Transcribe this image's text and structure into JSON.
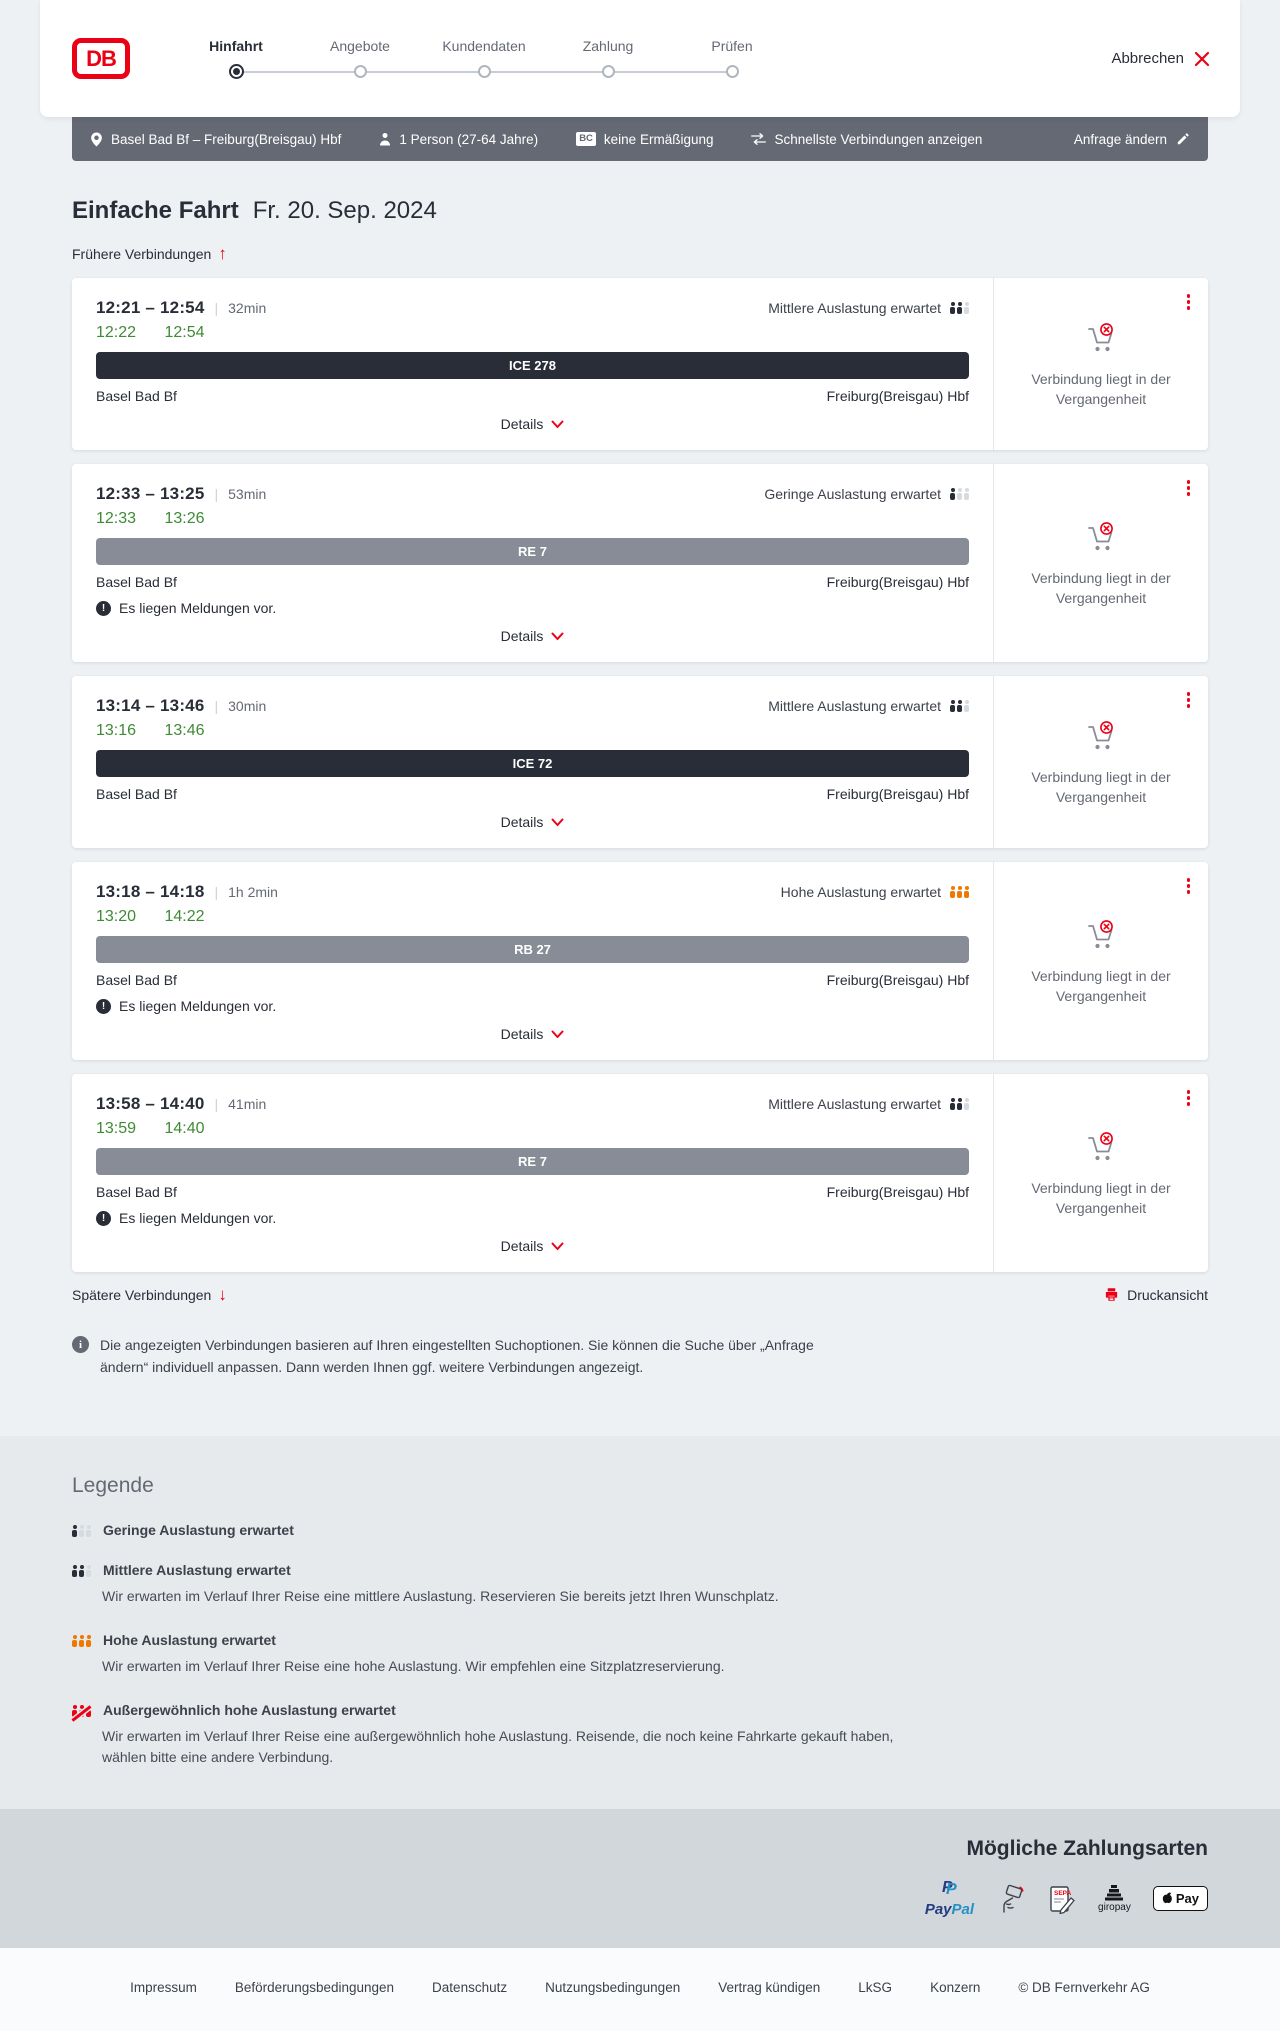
{
  "colors": {
    "brand_red": "#ec0016",
    "green_ontime": "#3f8a35",
    "orange_high": "#f07800",
    "bar_dark": "#282d37",
    "bar_gray": "#878c96",
    "querybar_bg": "#646973"
  },
  "header": {
    "logo_text": "DB",
    "cancel_label": "Abbrechen",
    "steps": [
      {
        "label": "Hinfahrt",
        "state": "active"
      },
      {
        "label": "Angebote",
        "state": "upcoming"
      },
      {
        "label": "Kundendaten",
        "state": "upcoming"
      },
      {
        "label": "Zahlung",
        "state": "upcoming"
      },
      {
        "label": "Prüfen",
        "state": "upcoming"
      }
    ]
  },
  "querybar": {
    "route": "Basel Bad Bf – Freiburg(Breisgau) Hbf",
    "passengers": "1 Person (27-64 Jahre)",
    "discount_badge": "BC",
    "discount": "keine Ermäßigung",
    "sort_mode": "Schnellste Verbindungen anzeigen",
    "edit_label": "Anfrage ändern"
  },
  "results": {
    "title": "Einfache Fahrt",
    "date": "Fr. 20. Sep. 2024",
    "earlier_label": "Frühere Verbindungen",
    "later_label": "Spätere Verbindungen",
    "print_label": "Druckansicht",
    "details_label": "Details",
    "past_note": "Verbindung liegt in der Vergangenheit",
    "message_note": "Es liegen Meldungen vor.",
    "info_text": "Die angezeigten Verbindungen basieren auf Ihren eingestellten Suchoptionen. Sie können die Suche über „Anfrage ändern“ individuell anpassen. Dann werden Ihnen ggf. weitere Verbindungen angezeigt.",
    "connections": [
      {
        "dep": "12:21",
        "arr": "12:54",
        "dash": "–",
        "duration": "32min",
        "real_dep": "12:22",
        "real_arr": "12:54",
        "train": "ICE 278",
        "train_type": "ice",
        "occupancy": "Mittlere Auslastung erwartet",
        "occupancy_level": "mittel",
        "from": "Basel Bad Bf",
        "to": "Freiburg(Breisgau) Hbf",
        "has_messages": false
      },
      {
        "dep": "12:33",
        "arr": "13:25",
        "dash": "–",
        "duration": "53min",
        "real_dep": "12:33",
        "real_arr": "13:26",
        "train": "RE 7",
        "train_type": "regional",
        "occupancy": "Geringe Auslastung erwartet",
        "occupancy_level": "gering",
        "from": "Basel Bad Bf",
        "to": "Freiburg(Breisgau) Hbf",
        "has_messages": true
      },
      {
        "dep": "13:14",
        "arr": "13:46",
        "dash": "–",
        "duration": "30min",
        "real_dep": "13:16",
        "real_arr": "13:46",
        "train": "ICE 72",
        "train_type": "ice",
        "occupancy": "Mittlere Auslastung erwartet",
        "occupancy_level": "mittel",
        "from": "Basel Bad Bf",
        "to": "Freiburg(Breisgau) Hbf",
        "has_messages": false
      },
      {
        "dep": "13:18",
        "arr": "14:18",
        "dash": "–",
        "duration": "1h 2min",
        "real_dep": "13:20",
        "real_arr": "14:22",
        "train": "RB 27",
        "train_type": "regional",
        "occupancy": "Hohe Auslastung erwartet",
        "occupancy_level": "hoch",
        "from": "Basel Bad Bf",
        "to": "Freiburg(Breisgau) Hbf",
        "has_messages": true
      },
      {
        "dep": "13:58",
        "arr": "14:40",
        "dash": "–",
        "duration": "41min",
        "real_dep": "13:59",
        "real_arr": "14:40",
        "train": "RE 7",
        "train_type": "regional",
        "occupancy": "Mittlere Auslastung erwartet",
        "occupancy_level": "mittel",
        "from": "Basel Bad Bf",
        "to": "Freiburg(Breisgau) Hbf",
        "has_messages": true
      }
    ]
  },
  "legend": {
    "title": "Legende",
    "items": [
      {
        "level": "gering",
        "title": "Geringe Auslastung erwartet",
        "desc": ""
      },
      {
        "level": "mittel",
        "title": "Mittlere Auslastung erwartet",
        "desc": "Wir erwarten im Verlauf Ihrer Reise eine mittlere Auslastung. Reservieren Sie bereits jetzt Ihren Wunschplatz."
      },
      {
        "level": "hoch",
        "title": "Hohe Auslastung erwartet",
        "desc": "Wir erwarten im Verlauf Ihrer Reise eine hohe Auslastung. Wir empfehlen eine Sitzplatzreservierung."
      },
      {
        "level": "sehr-hoch",
        "title": "Außergewöhnlich hohe Auslastung erwartet",
        "desc": "Wir erwarten im Verlauf Ihrer Reise eine außergewöhnlich hohe Auslastung. Reisende, die noch keine Fahrkarte gekauft haben, wählen bitte eine andere Verbindung."
      }
    ]
  },
  "payments": {
    "title": "Mögliche Zahlungsarten",
    "paypal_pay": "Pay",
    "paypal_pal": "Pal",
    "paypal_mark": "P",
    "sepa_label": "SEPA",
    "giropay_label": "giropay",
    "applepay_label": "Pay",
    "methods": [
      "PayPal",
      "Kreditkarte",
      "SEPA-Lastschrift",
      "giropay",
      "Apple Pay"
    ]
  },
  "footer": {
    "links": [
      "Impressum",
      "Beförderungsbedingungen",
      "Datenschutz",
      "Nutzungsbedingungen",
      "Vertrag kündigen",
      "LkSG",
      "Konzern"
    ],
    "copyright": "© DB Fernverkehr AG"
  }
}
